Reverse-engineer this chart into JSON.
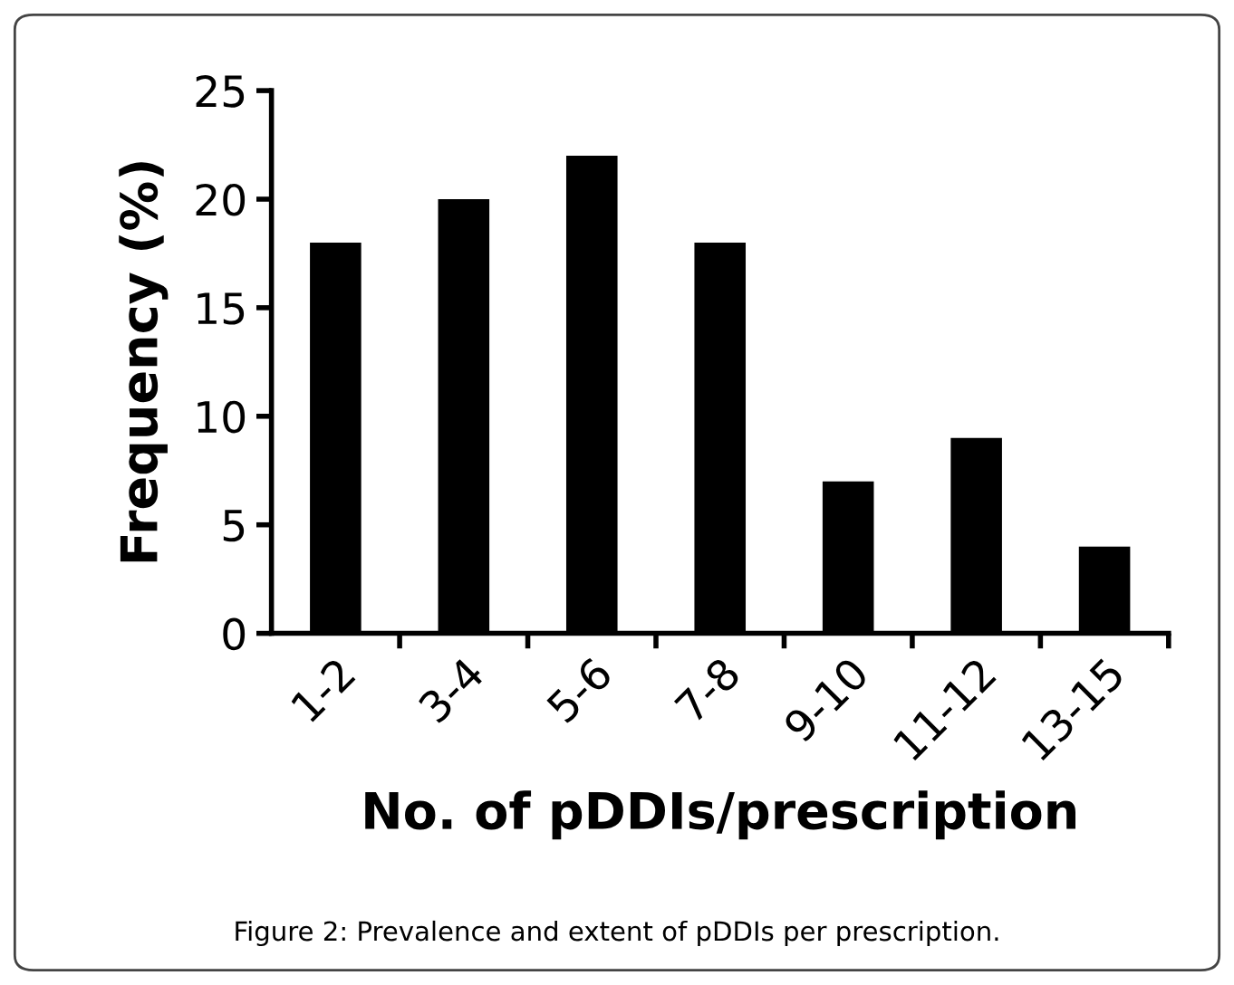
{
  "chart_data": {
    "type": "bar",
    "xlabel": "No. of pDDIs/prescription",
    "ylabel": "Frequency (%)",
    "categories": [
      "1-2",
      "3-4",
      "5-6",
      "7-8",
      "9-10",
      "11-12",
      "13-15"
    ],
    "values": [
      18,
      20,
      22,
      18,
      7,
      9,
      4
    ],
    "color": "#000000",
    "ylim": [
      0,
      25
    ],
    "yticks": [
      0,
      5,
      10,
      15,
      20,
      25
    ],
    "grid": false,
    "legend": false,
    "annotations": [
      "Figure 2: Prevalence and extent of pDDIs per prescription."
    ]
  }
}
